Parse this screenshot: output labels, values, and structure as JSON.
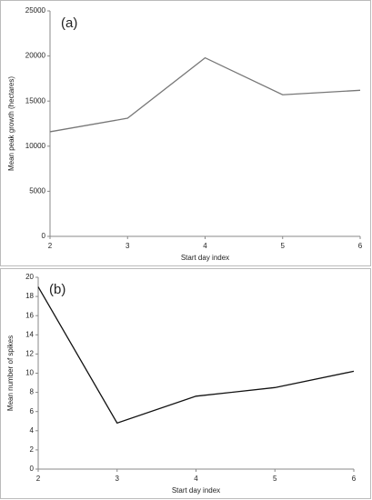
{
  "chart_data": [
    {
      "type": "line",
      "annotation": "(a)",
      "x_label": "Start day index",
      "y_label": "Mean peak growth (hectares)",
      "x": [
        2,
        3,
        4,
        5,
        6
      ],
      "series": [
        {
          "name": "Mean peak growth",
          "color": "#777777",
          "values": [
            11600,
            13100,
            19800,
            15700,
            16200
          ]
        }
      ],
      "xlim": [
        2,
        6
      ],
      "xticks": [
        2,
        3,
        4,
        5,
        6
      ],
      "ylim": [
        0,
        25000
      ],
      "yticks": [
        0,
        5000,
        10000,
        15000,
        20000,
        25000
      ],
      "grid": false
    },
    {
      "type": "line",
      "annotation": "(b)",
      "x_label": "Start day index",
      "y_label": "Mean number of spikes",
      "x": [
        2,
        3,
        4,
        5,
        6
      ],
      "series": [
        {
          "name": "Mean number of spikes",
          "color": "#111111",
          "values": [
            19,
            4.8,
            7.6,
            8.5,
            10.2
          ]
        }
      ],
      "xlim": [
        2,
        6
      ],
      "xticks": [
        2,
        3,
        4,
        5,
        6
      ],
      "ylim": [
        0,
        20
      ],
      "yticks": [
        0,
        2,
        4,
        6,
        8,
        10,
        12,
        14,
        16,
        18,
        20
      ],
      "grid": false
    }
  ]
}
